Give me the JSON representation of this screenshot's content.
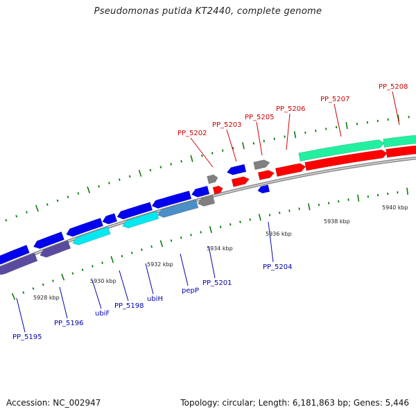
{
  "title": "Pseudomonas putida KT2440, complete genome",
  "footer": {
    "accession": "Accession: NC_002947",
    "stats": "Topology: circular; Length: 6,181,863 bp; Genes: 5,446"
  },
  "colors": {
    "forward_gene": "#ff0000",
    "reverse_gene": "#0000ee",
    "pseudo_gene": "#808080",
    "forward_cds": "#22f0a0",
    "reverse_cds": "#00e8f0",
    "reverse_cds_gene": "#5b4ba0",
    "label_forward": "#cc0000",
    "label_reverse": "#0000aa",
    "tick": "#0a7a0a",
    "backbone": "#8c8c8c"
  },
  "scale": {
    "kbp_labels": [
      "5928 kbp",
      "5930 kbp",
      "5932 kbp",
      "5934 kbp",
      "5936 kbp",
      "5938 kbp",
      "5940 kbp"
    ]
  },
  "genes_forward": [
    {
      "label": "PP_5202"
    },
    {
      "label": "PP_5203"
    },
    {
      "label": "PP_5205"
    },
    {
      "label": "PP_5206"
    },
    {
      "label": "PP_5207"
    },
    {
      "label": "PP_5208"
    }
  ],
  "genes_reverse": [
    {
      "label": "PP_5195"
    },
    {
      "label": "PP_5196"
    },
    {
      "label": "ubiF"
    },
    {
      "label": "PP_5198"
    },
    {
      "label": "ubiH"
    },
    {
      "label": "pepP"
    },
    {
      "label": "PP_5201"
    },
    {
      "label": "PP_5204"
    }
  ]
}
